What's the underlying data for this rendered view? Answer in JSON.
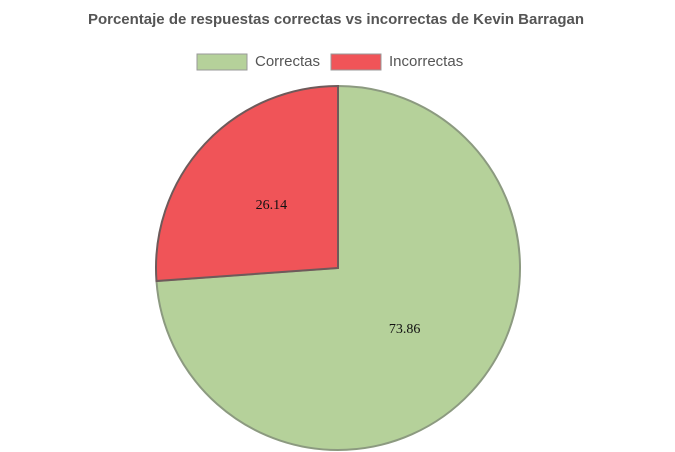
{
  "chart_data": {
    "type": "pie",
    "title": "Porcentaje de respuestas correctas vs incorrectas de Kevin Barragan",
    "categories": [
      "Correctas",
      "Incorrectas"
    ],
    "values": [
      73.86,
      26.14
    ],
    "colors": [
      "#b5d19a",
      "#f05458"
    ],
    "legend": "top"
  }
}
